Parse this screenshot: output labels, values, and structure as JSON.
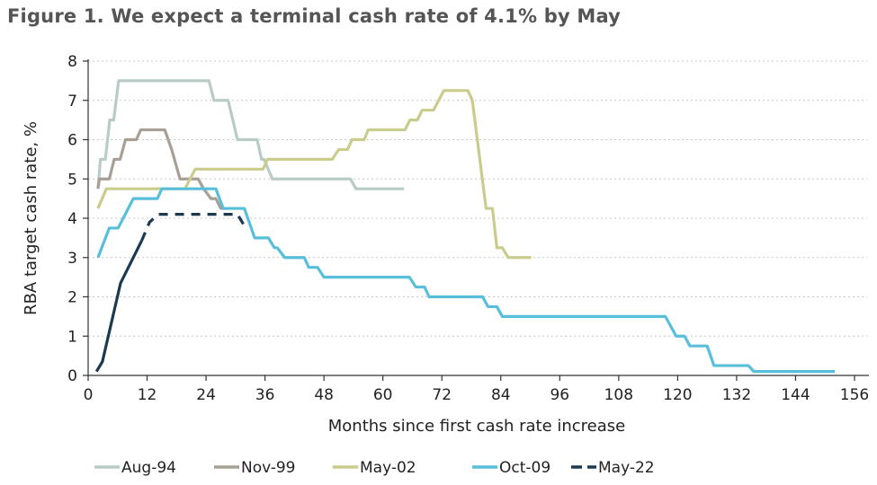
{
  "chart_data": {
    "type": "line",
    "title": "Figure 1. We expect a terminal cash rate of 4.1% by May",
    "xlabel": "Months since first cash rate increase",
    "ylabel": "RBA target cash rate, %",
    "xlim": [
      0,
      158
    ],
    "ylim": [
      0,
      8
    ],
    "xticks": [
      0,
      12,
      24,
      36,
      48,
      60,
      72,
      84,
      96,
      108,
      120,
      132,
      144,
      156
    ],
    "yticks": [
      0,
      1,
      2,
      3,
      4,
      5,
      6,
      7,
      8
    ],
    "grid": "horizontal dotted",
    "legend": "bottom",
    "series": [
      {
        "name": "Aug-94",
        "color": "#b8cbc7",
        "style": "solid",
        "points": [
          [
            2,
            4.75
          ],
          [
            2.5,
            5.5
          ],
          [
            3.5,
            5.5
          ],
          [
            4.4,
            6.5
          ],
          [
            5.2,
            6.5
          ],
          [
            6.2,
            7.5
          ],
          [
            24.6,
            7.5
          ],
          [
            25.6,
            7
          ],
          [
            28.5,
            7
          ],
          [
            30.4,
            6
          ],
          [
            34.4,
            6
          ],
          [
            35.3,
            5.5
          ],
          [
            35.8,
            5.5
          ],
          [
            37.5,
            5
          ],
          [
            53.4,
            5
          ],
          [
            54.5,
            4.75
          ],
          [
            64.3,
            4.75
          ]
        ]
      },
      {
        "name": "Nov-99",
        "color": "#a89f95",
        "style": "solid",
        "points": [
          [
            2,
            4.75
          ],
          [
            2.3,
            5
          ],
          [
            4.3,
            5
          ],
          [
            5.3,
            5.5
          ],
          [
            6.5,
            5.5
          ],
          [
            7.6,
            6
          ],
          [
            9.8,
            6
          ],
          [
            10.7,
            6.25
          ],
          [
            15.6,
            6.25
          ],
          [
            17,
            5.75
          ],
          [
            18.7,
            5
          ],
          [
            22.4,
            5
          ],
          [
            23.5,
            4.75
          ],
          [
            25,
            4.5
          ],
          [
            26,
            4.5
          ],
          [
            27,
            4.25
          ],
          [
            28,
            4.25
          ]
        ]
      },
      {
        "name": "May-02",
        "color": "#c9cc8c",
        "style": "solid",
        "points": [
          [
            2,
            4.25
          ],
          [
            3.7,
            4.75
          ],
          [
            19.7,
            4.75
          ],
          [
            21.8,
            5.25
          ],
          [
            35.6,
            5.25
          ],
          [
            36.5,
            5.5
          ],
          [
            49.7,
            5.5
          ],
          [
            51,
            5.75
          ],
          [
            52.8,
            5.75
          ],
          [
            53.7,
            6
          ],
          [
            56.2,
            6
          ],
          [
            57,
            6.25
          ],
          [
            64.5,
            6.25
          ],
          [
            65.5,
            6.5
          ],
          [
            67,
            6.5
          ],
          [
            68,
            6.75
          ],
          [
            70.3,
            6.75
          ],
          [
            72.4,
            7.25
          ],
          [
            77.3,
            7.25
          ],
          [
            78.2,
            7
          ],
          [
            81,
            4.25
          ],
          [
            82.3,
            4.25
          ],
          [
            83.2,
            3.25
          ],
          [
            84.3,
            3.25
          ],
          [
            85.5,
            3
          ],
          [
            90.2,
            3
          ]
        ]
      },
      {
        "name": "Oct-09",
        "color": "#58bfdb",
        "style": "solid",
        "points": [
          [
            2,
            3
          ],
          [
            4.3,
            3.75
          ],
          [
            6.1,
            3.75
          ],
          [
            9.2,
            4.5
          ],
          [
            14.1,
            4.5
          ],
          [
            15,
            4.75
          ],
          [
            26,
            4.75
          ],
          [
            27.5,
            4.25
          ],
          [
            31.8,
            4.25
          ],
          [
            33.9,
            3.5
          ],
          [
            36.7,
            3.5
          ],
          [
            37.9,
            3.25
          ],
          [
            38.5,
            3.25
          ],
          [
            40,
            3
          ],
          [
            44,
            3
          ],
          [
            44.9,
            2.75
          ],
          [
            46.7,
            2.75
          ],
          [
            48,
            2.5
          ],
          [
            65.4,
            2.5
          ],
          [
            66.7,
            2.25
          ],
          [
            68.5,
            2.25
          ],
          [
            69.4,
            2
          ],
          [
            80.3,
            2
          ],
          [
            81.4,
            1.75
          ],
          [
            83.2,
            1.75
          ],
          [
            84.3,
            1.5
          ],
          [
            117.5,
            1.5
          ],
          [
            119.7,
            1
          ],
          [
            121.4,
            1
          ],
          [
            122.5,
            0.75
          ],
          [
            126,
            0.75
          ],
          [
            127.4,
            0.25
          ],
          [
            134.4,
            0.25
          ],
          [
            135.5,
            0.1
          ],
          [
            152,
            0.1
          ]
        ]
      },
      {
        "name": "May-22",
        "color": "#1b3a52",
        "style": "solid",
        "points": [
          [
            1.7,
            0.1
          ],
          [
            2.9,
            0.35
          ],
          [
            6.6,
            2.35
          ],
          [
            10.9,
            3.43
          ]
        ]
      },
      {
        "name": "",
        "color": "#1b3a52",
        "style": "dashed",
        "points": [
          [
            10.9,
            3.43
          ],
          [
            12.5,
            3.9
          ],
          [
            14.3,
            4.1
          ],
          [
            30.4,
            4.1
          ],
          [
            31.6,
            3.85
          ]
        ]
      }
    ]
  }
}
